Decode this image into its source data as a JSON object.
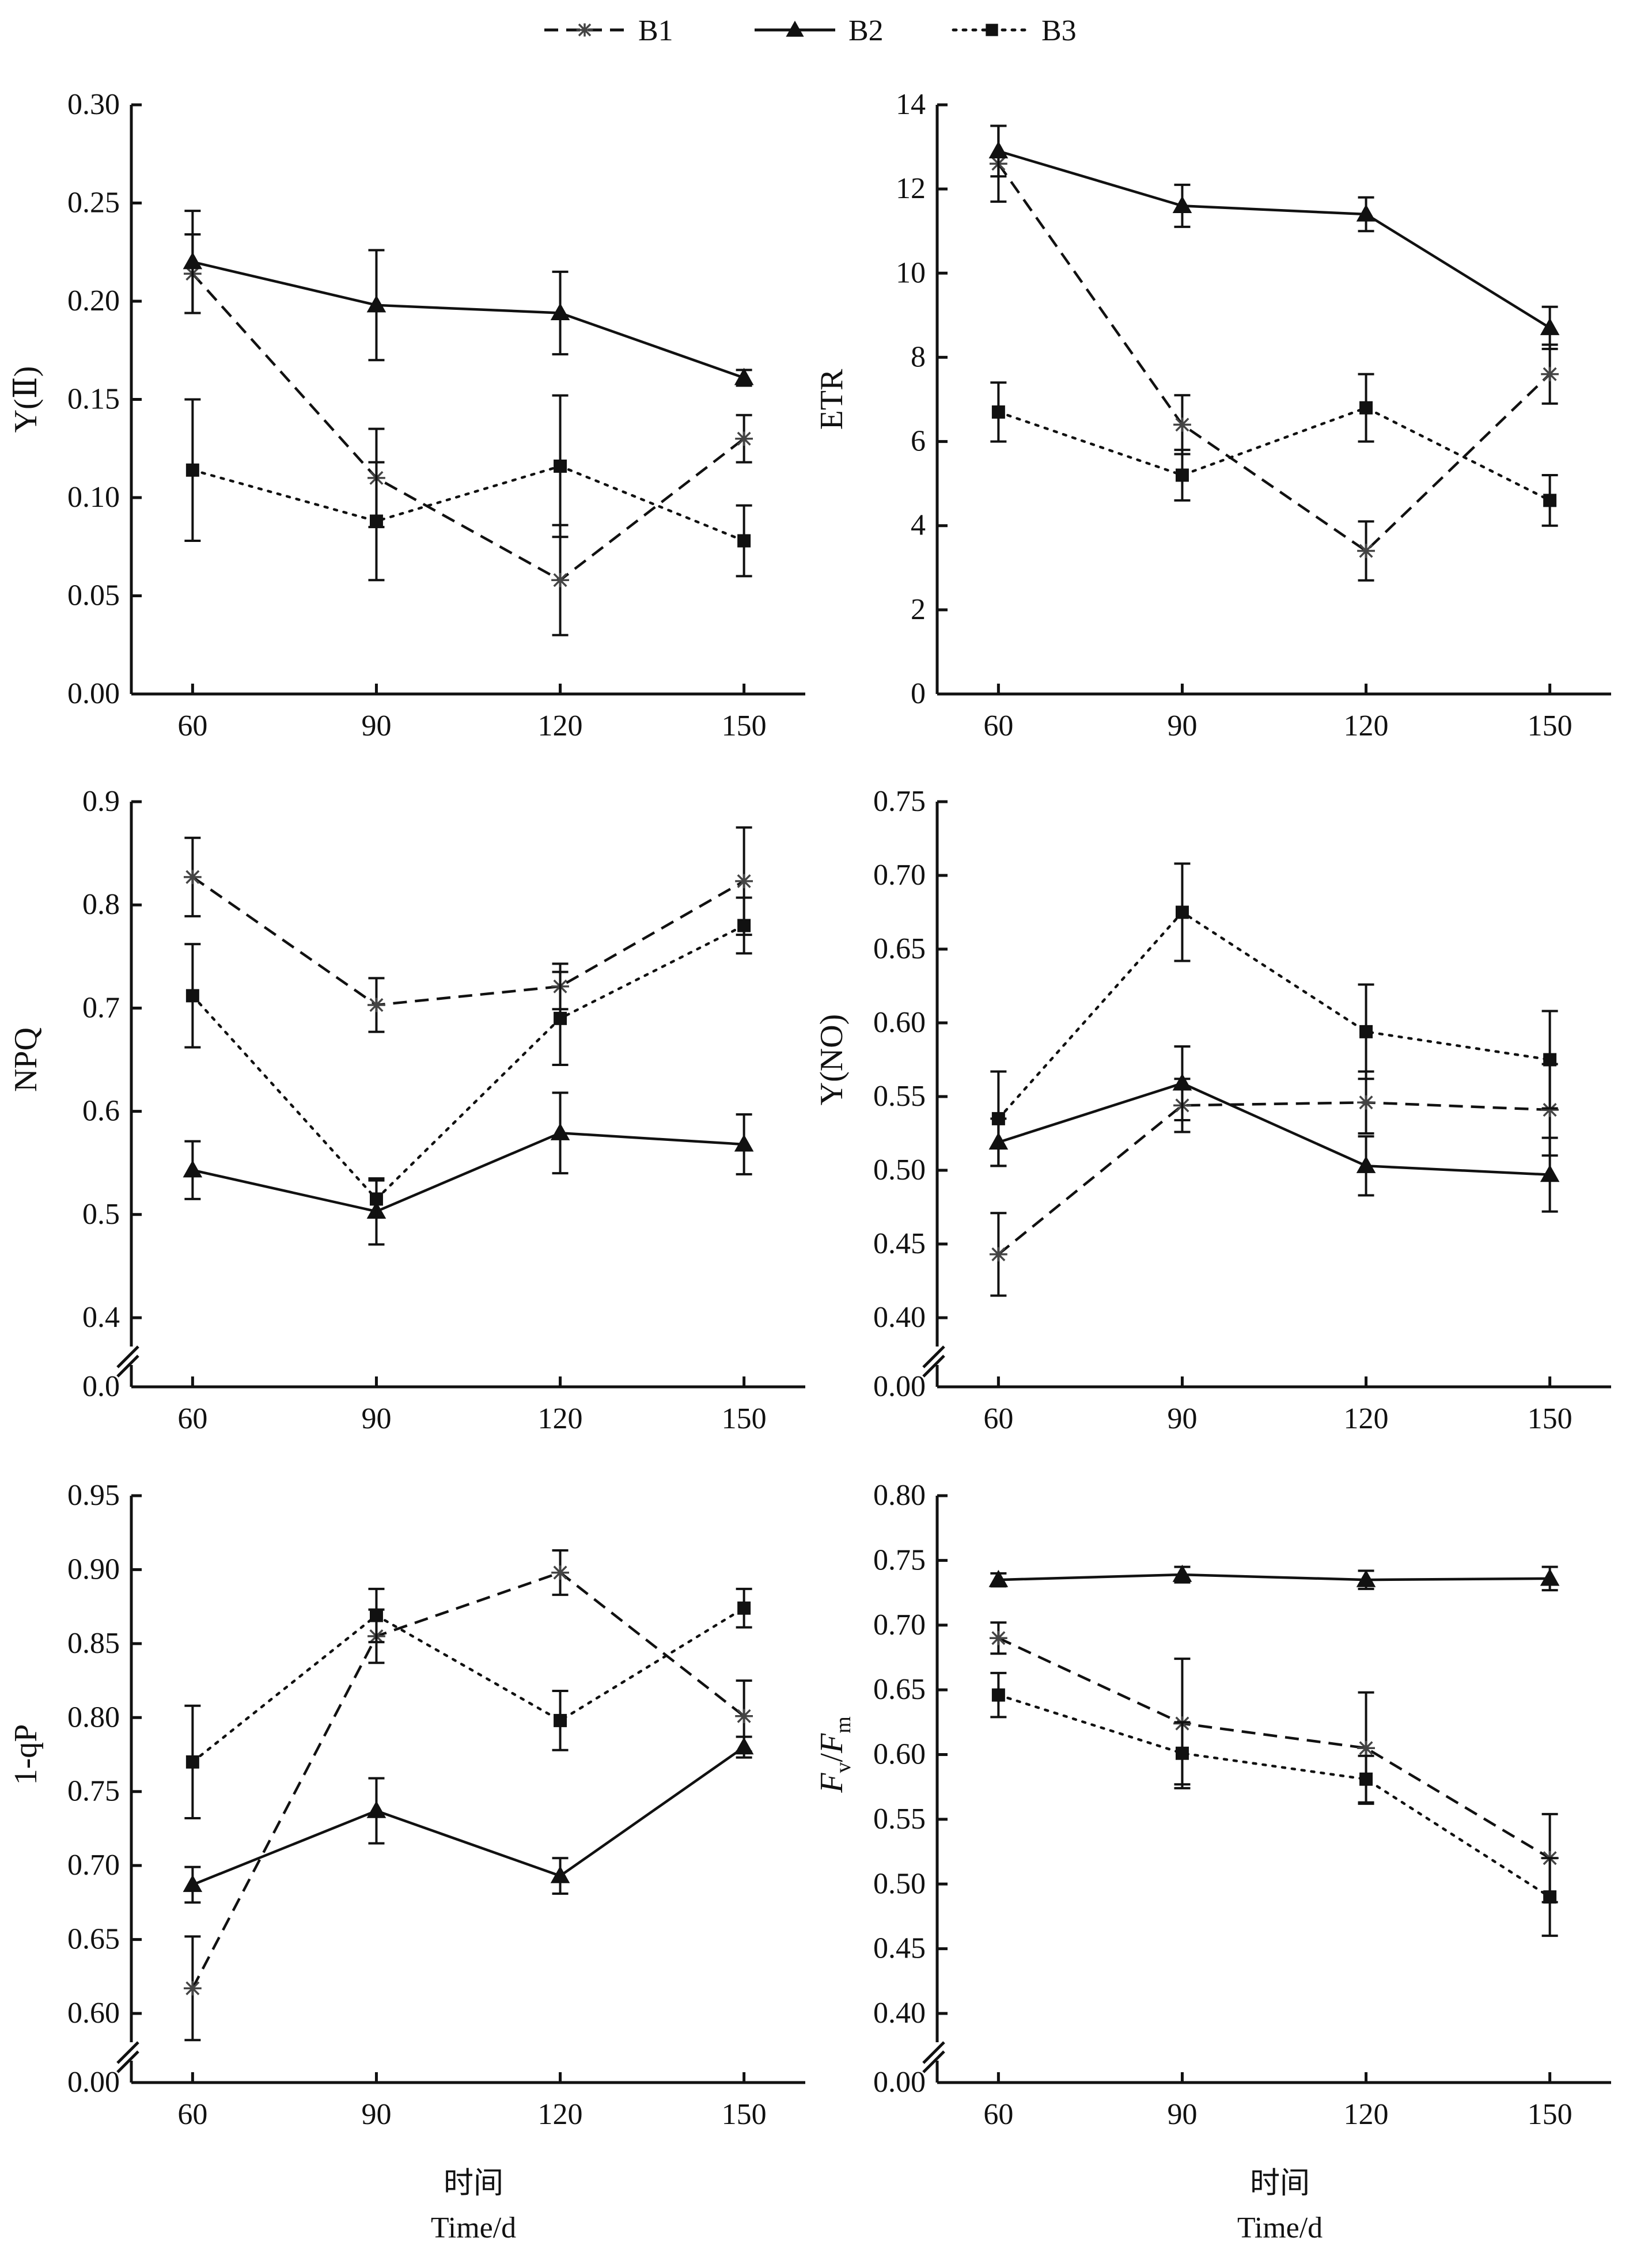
{
  "legend": [
    {
      "name": "B1",
      "marker": "star",
      "dash": "dashed"
    },
    {
      "name": "B2",
      "marker": "triangle",
      "dash": "solid"
    },
    {
      "name": "B3",
      "marker": "square",
      "dash": "dotted"
    }
  ],
  "xlabel_cn": "时间",
  "xlabel_en": "Time/d",
  "chart_data": [
    {
      "type": "line",
      "ylabel": "Y(Ⅱ)",
      "x": [
        60,
        90,
        120,
        150
      ],
      "xticks": [
        "60",
        "90",
        "120",
        "150"
      ],
      "ylim": [
        0.0,
        0.3
      ],
      "yticks": [
        0.0,
        0.05,
        0.1,
        0.15,
        0.2,
        0.25,
        0.3
      ],
      "ytick_labels": [
        "0.00",
        "0.05",
        "0.10",
        "0.15",
        "0.20",
        "0.25",
        "0.30"
      ],
      "broken_axis": false,
      "series": [
        {
          "name": "B1",
          "values": [
            0.214,
            0.11,
            0.058,
            0.13
          ],
          "errors": [
            0.02,
            0.025,
            0.028,
            0.012
          ]
        },
        {
          "name": "B2",
          "values": [
            0.22,
            0.198,
            0.194,
            0.161
          ],
          "errors": [
            0.026,
            0.028,
            0.021,
            0.004
          ]
        },
        {
          "name": "B3",
          "values": [
            0.114,
            0.088,
            0.116,
            0.078
          ],
          "errors": [
            0.036,
            0.03,
            0.036,
            0.018
          ]
        }
      ]
    },
    {
      "type": "line",
      "ylabel": "ETR",
      "x": [
        60,
        90,
        120,
        150
      ],
      "xticks": [
        "60",
        "90",
        "120",
        "150"
      ],
      "ylim": [
        0,
        14
      ],
      "yticks": [
        0,
        2,
        4,
        6,
        8,
        10,
        12,
        14
      ],
      "ytick_labels": [
        "0",
        "2",
        "4",
        "6",
        "8",
        "10",
        "12",
        "14"
      ],
      "broken_axis": false,
      "series": [
        {
          "name": "B1",
          "values": [
            12.6,
            6.4,
            3.4,
            7.6
          ],
          "errors": [
            0.9,
            0.7,
            0.7,
            0.7
          ]
        },
        {
          "name": "B2",
          "values": [
            12.9,
            11.6,
            11.4,
            8.7
          ],
          "errors": [
            0.6,
            0.5,
            0.4,
            0.5
          ]
        },
        {
          "name": "B3",
          "values": [
            6.7,
            5.2,
            6.8,
            4.6
          ],
          "errors": [
            0.7,
            0.6,
            0.8,
            0.6
          ]
        }
      ]
    },
    {
      "type": "line",
      "ylabel": "NPQ",
      "x": [
        60,
        90,
        120,
        150
      ],
      "xticks": [
        "60",
        "90",
        "120",
        "150"
      ],
      "ylim": [
        0.4,
        0.9
      ],
      "yticks": [
        0.4,
        0.5,
        0.6,
        0.7,
        0.8,
        0.9
      ],
      "ytick_labels": [
        "0.4",
        "0.5",
        "0.6",
        "0.7",
        "0.8",
        "0.9"
      ],
      "broken_axis": true,
      "break_label": "0.0",
      "series": [
        {
          "name": "B1",
          "values": [
            0.827,
            0.703,
            0.721,
            0.823
          ],
          "errors": [
            0.038,
            0.026,
            0.022,
            0.052
          ]
        },
        {
          "name": "B2",
          "values": [
            0.543,
            0.503,
            0.579,
            0.568
          ],
          "errors": [
            0.028,
            0.032,
            0.039,
            0.029
          ]
        },
        {
          "name": "B3",
          "values": [
            0.712,
            0.515,
            0.69,
            0.78
          ],
          "errors": [
            0.05,
            0.018,
            0.045,
            0.027
          ]
        }
      ]
    },
    {
      "type": "line",
      "ylabel": "Y(NO)",
      "x": [
        60,
        90,
        120,
        150
      ],
      "xticks": [
        "60",
        "90",
        "120",
        "150"
      ],
      "ylim": [
        0.4,
        0.75
      ],
      "yticks": [
        0.4,
        0.45,
        0.5,
        0.55,
        0.6,
        0.65,
        0.7,
        0.75
      ],
      "ytick_labels": [
        "0.40",
        "0.45",
        "0.50",
        "0.55",
        "0.60",
        "0.65",
        "0.70",
        "0.75"
      ],
      "broken_axis": true,
      "break_label": "0.00",
      "series": [
        {
          "name": "B1",
          "values": [
            0.443,
            0.544,
            0.546,
            0.541
          ],
          "errors": [
            0.028,
            0.018,
            0.021,
            0.031
          ]
        },
        {
          "name": "B2",
          "values": [
            0.519,
            0.559,
            0.503,
            0.497
          ],
          "errors": [
            0.016,
            0.025,
            0.02,
            0.025
          ]
        },
        {
          "name": "B3",
          "values": [
            0.535,
            0.675,
            0.594,
            0.575
          ],
          "errors": [
            0.032,
            0.033,
            0.032,
            0.033
          ]
        }
      ]
    },
    {
      "type": "line",
      "ylabel": "1-qP",
      "x": [
        60,
        90,
        120,
        150
      ],
      "xticks": [
        "60",
        "90",
        "120",
        "150"
      ],
      "ylim": [
        0.6,
        0.95
      ],
      "yticks": [
        0.6,
        0.65,
        0.7,
        0.75,
        0.8,
        0.85,
        0.9,
        0.95
      ],
      "ytick_labels": [
        "0.60",
        "0.65",
        "0.70",
        "0.75",
        "0.80",
        "0.85",
        "0.90",
        "0.95"
      ],
      "broken_axis": true,
      "break_label": "0.00",
      "series": [
        {
          "name": "B1",
          "values": [
            0.617,
            0.855,
            0.898,
            0.801
          ],
          "errors": [
            0.035,
            0.018,
            0.015,
            0.024
          ]
        },
        {
          "name": "B2",
          "values": [
            0.687,
            0.737,
            0.693,
            0.78
          ],
          "errors": [
            0.012,
            0.022,
            0.012,
            0.007
          ]
        },
        {
          "name": "B3",
          "values": [
            0.77,
            0.869,
            0.798,
            0.874
          ],
          "errors": [
            0.038,
            0.018,
            0.02,
            0.013
          ]
        }
      ]
    },
    {
      "type": "line",
      "ylabel": "Fv/Fm",
      "ylabel_parts": {
        "F1": "F",
        "sub1": "v",
        "slash": "/",
        "F2": "F",
        "sub2": "m"
      },
      "x": [
        60,
        90,
        120,
        150
      ],
      "xticks": [
        "60",
        "90",
        "120",
        "150"
      ],
      "ylim": [
        0.4,
        0.8
      ],
      "yticks": [
        0.4,
        0.45,
        0.5,
        0.55,
        0.6,
        0.65,
        0.7,
        0.75,
        0.8
      ],
      "ytick_labels": [
        "0.40",
        "0.45",
        "0.50",
        "0.55",
        "0.60",
        "0.65",
        "0.70",
        "0.75",
        "0.80"
      ],
      "broken_axis": true,
      "break_label": "0.00",
      "series": [
        {
          "name": "B1",
          "values": [
            0.69,
            0.624,
            0.605,
            0.52
          ],
          "errors": [
            0.012,
            0.05,
            0.043,
            0.034
          ]
        },
        {
          "name": "B2",
          "values": [
            0.735,
            0.739,
            0.735,
            0.736
          ],
          "errors": [
            0.005,
            0.006,
            0.007,
            0.009
          ]
        },
        {
          "name": "B3",
          "values": [
            0.646,
            0.601,
            0.581,
            0.49
          ],
          "errors": [
            0.017,
            0.024,
            0.018,
            0.03
          ]
        }
      ]
    }
  ]
}
